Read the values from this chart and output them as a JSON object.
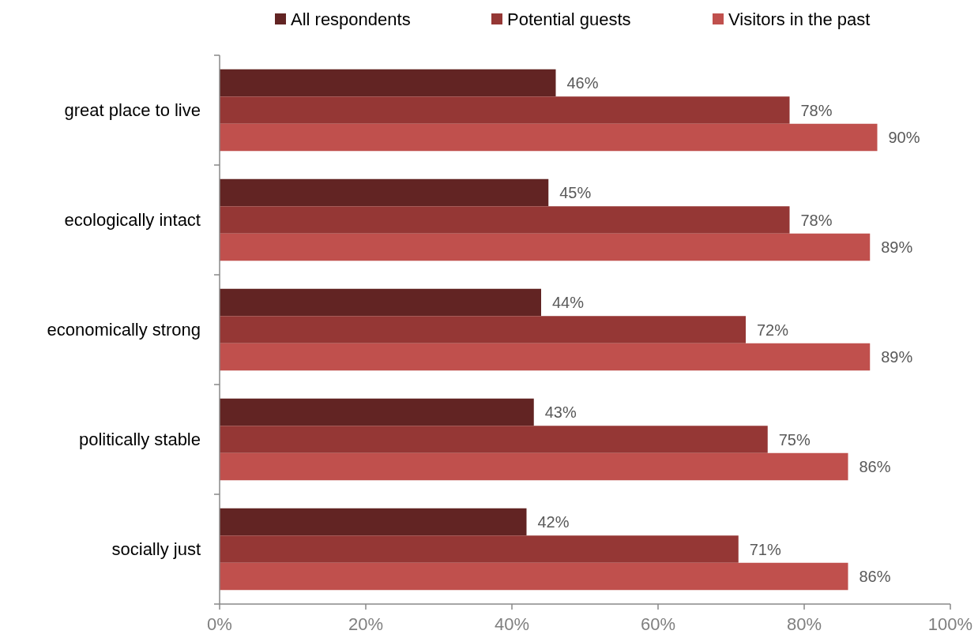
{
  "chart_data": {
    "type": "bar",
    "orientation": "horizontal",
    "categories": [
      "great place to live",
      "ecologically intact",
      "economically strong",
      "politically stable",
      "socially just"
    ],
    "series": [
      {
        "name": "All respondents",
        "color": "#622423",
        "values": [
          46,
          45,
          44,
          43,
          42
        ],
        "value_labels": [
          "46%",
          "45%",
          "44%",
          "43%",
          "42%"
        ]
      },
      {
        "name": "Potential guests",
        "color": "#953735",
        "values": [
          78,
          78,
          72,
          75,
          71
        ],
        "value_labels": [
          "78%",
          "78%",
          "72%",
          "75%",
          "71%"
        ]
      },
      {
        "name": "Visitors in the past",
        "color": "#c0504d",
        "values": [
          90,
          89,
          89,
          86,
          86
        ],
        "value_labels": [
          "90%",
          "89%",
          "89%",
          "86%",
          "86%"
        ]
      }
    ],
    "xlim": [
      0,
      100
    ],
    "xticks": [
      {
        "value": 0,
        "label": "0%"
      },
      {
        "value": 20,
        "label": "20%"
      },
      {
        "value": 40,
        "label": "40%"
      },
      {
        "value": 60,
        "label": "60%"
      },
      {
        "value": 80,
        "label": "80%"
      },
      {
        "value": 100,
        "label": "100%"
      }
    ],
    "legend": "top",
    "grid": false
  }
}
